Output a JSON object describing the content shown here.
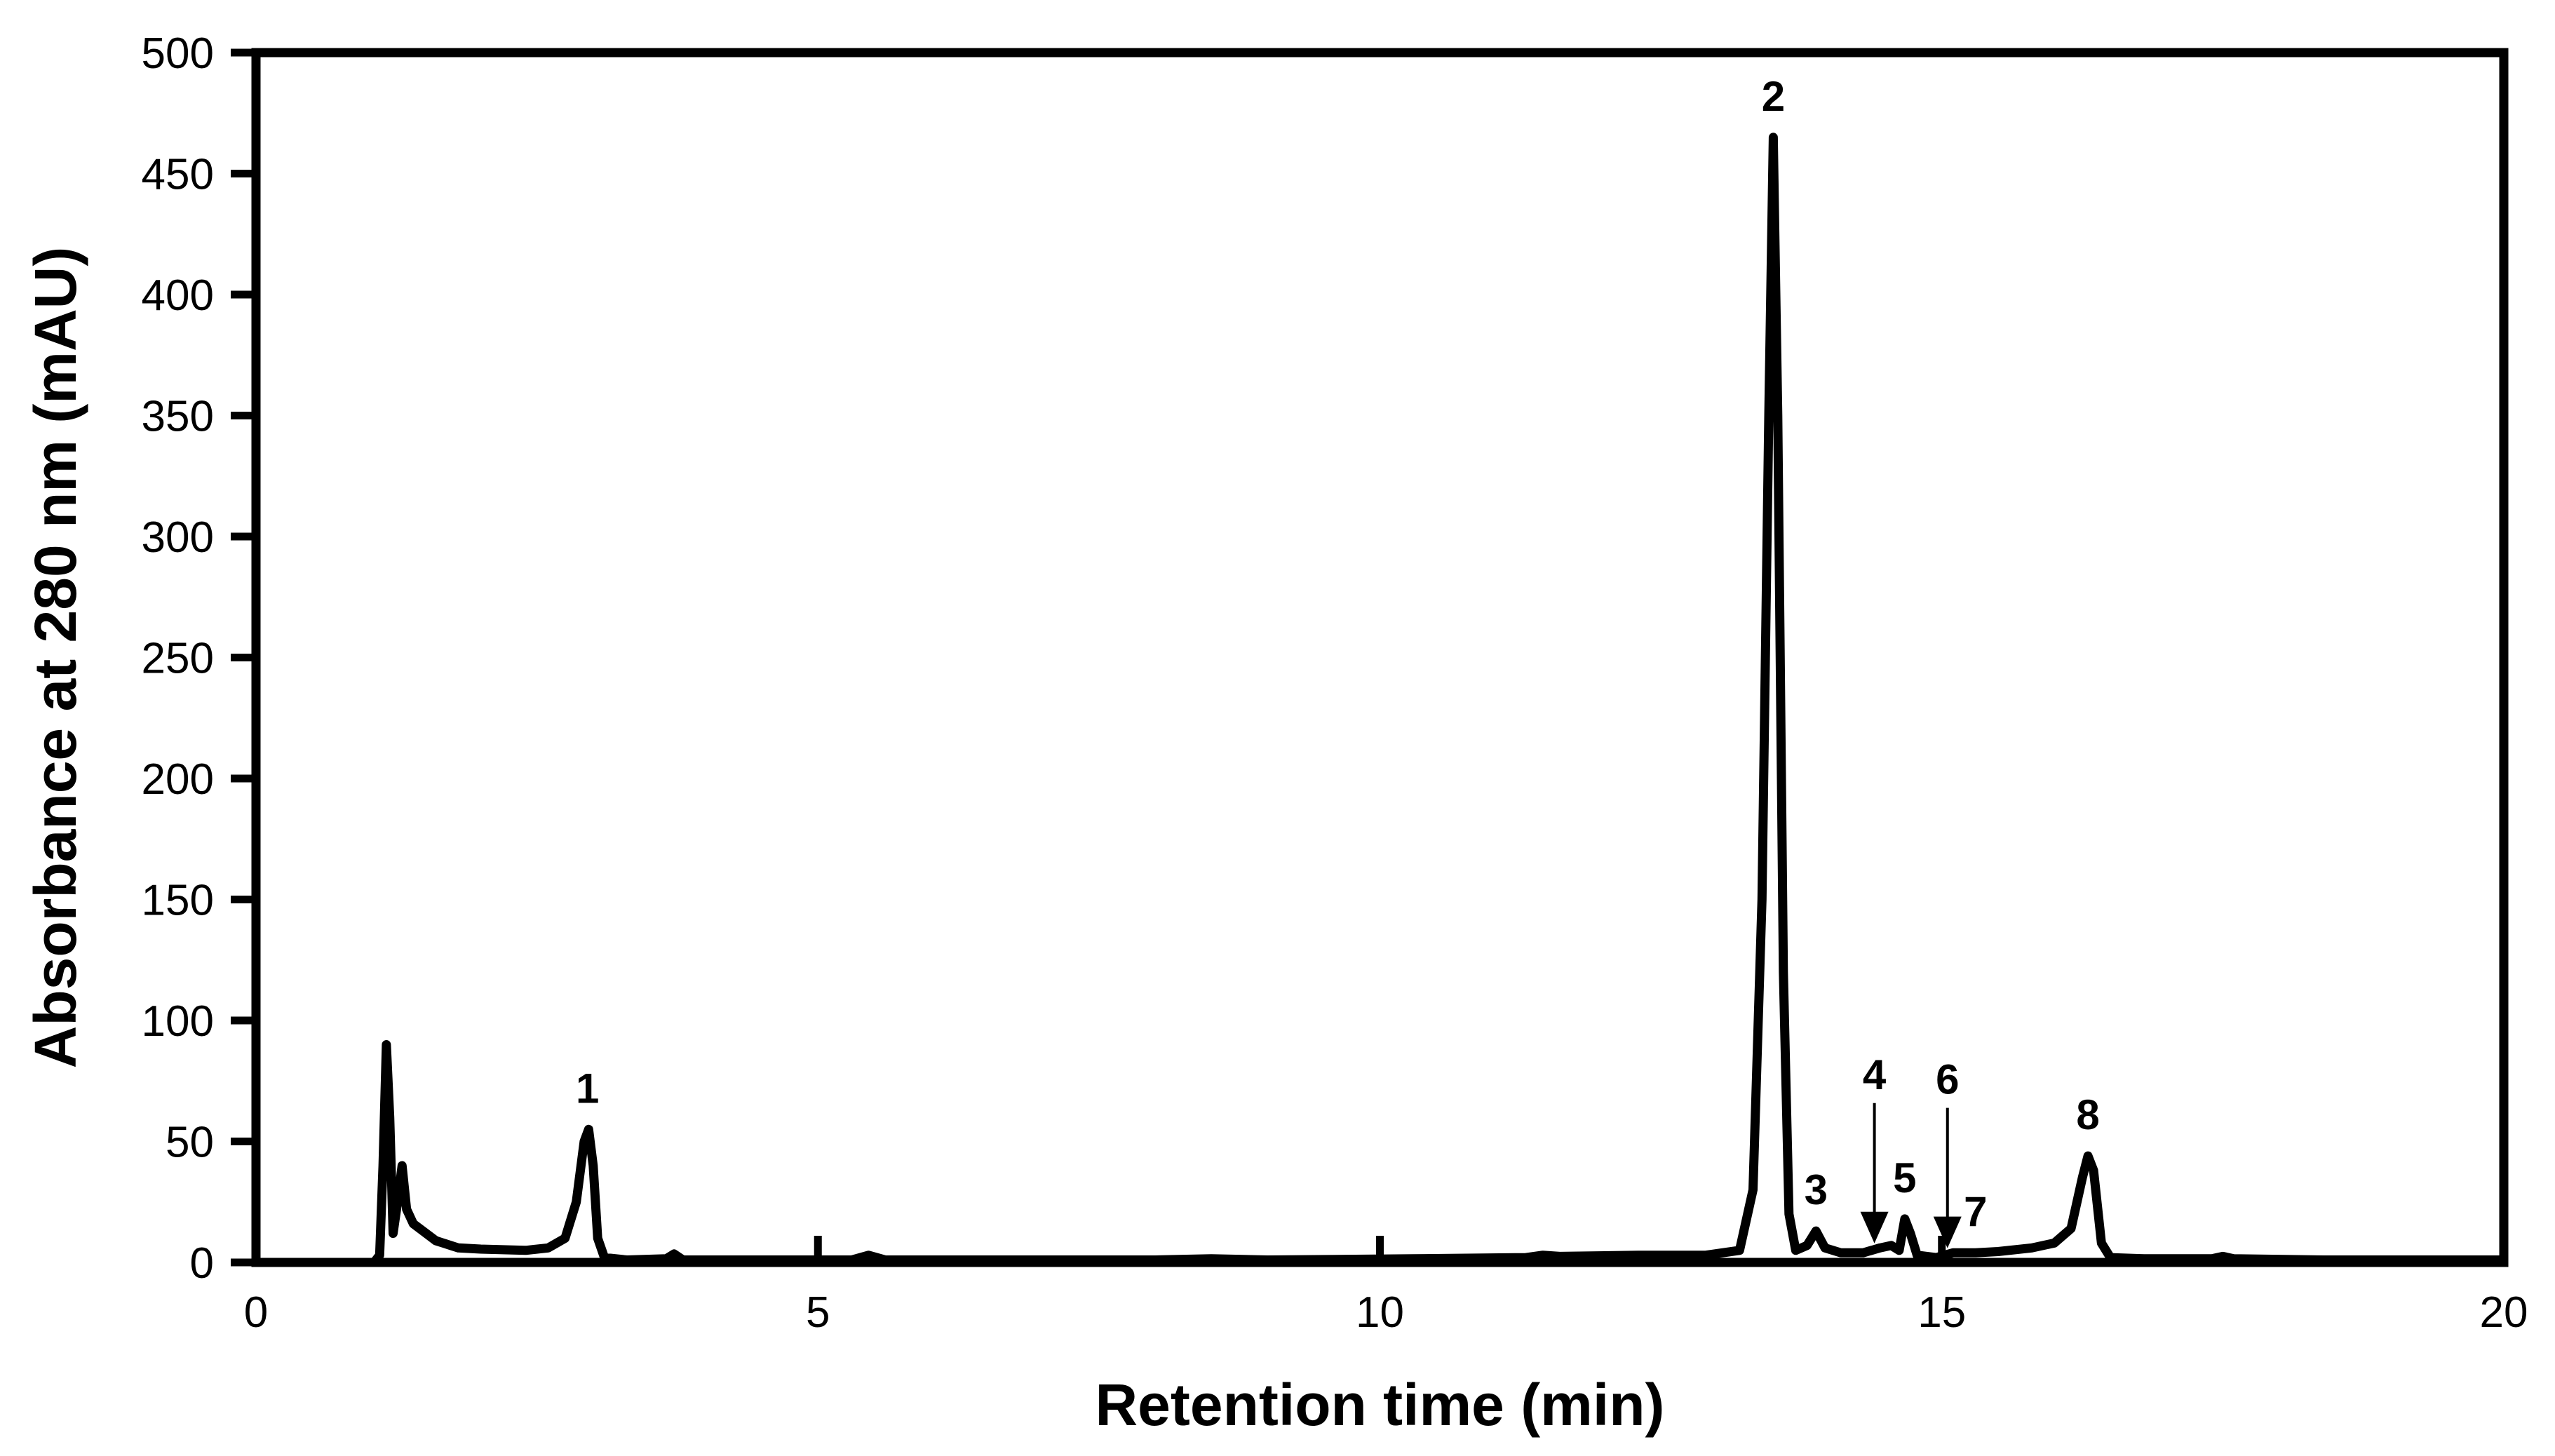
{
  "chart_data": {
    "type": "line",
    "title": "",
    "xlabel": "Retention time (min)",
    "ylabel": "Absorbance at 280 nm (mAU)",
    "xlim": [
      0,
      20
    ],
    "ylim": [
      0,
      500
    ],
    "x_ticks": [
      0,
      5,
      10,
      15,
      20
    ],
    "y_ticks": [
      0,
      50,
      100,
      150,
      200,
      250,
      300,
      350,
      400,
      450,
      500
    ],
    "grid": false,
    "legend": "none",
    "line_color": "#000000",
    "series": [
      {
        "values": [
          [
            0.0,
            0
          ],
          [
            1.05,
            0
          ],
          [
            1.1,
            3
          ],
          [
            1.13,
            40
          ],
          [
            1.16,
            90
          ],
          [
            1.19,
            60
          ],
          [
            1.22,
            12
          ],
          [
            1.26,
            25
          ],
          [
            1.3,
            40
          ],
          [
            1.34,
            22
          ],
          [
            1.4,
            16
          ],
          [
            1.6,
            9
          ],
          [
            1.8,
            6
          ],
          [
            2.0,
            5.5
          ],
          [
            2.4,
            5
          ],
          [
            2.6,
            6
          ],
          [
            2.75,
            10
          ],
          [
            2.85,
            25
          ],
          [
            2.92,
            50
          ],
          [
            2.96,
            55
          ],
          [
            3.0,
            40
          ],
          [
            3.04,
            10
          ],
          [
            3.1,
            2
          ],
          [
            3.3,
            1
          ],
          [
            3.65,
            1.5
          ],
          [
            3.72,
            3.5
          ],
          [
            3.8,
            1
          ],
          [
            5.3,
            1
          ],
          [
            5.45,
            3
          ],
          [
            5.6,
            1
          ],
          [
            8.0,
            1
          ],
          [
            8.5,
            1.5
          ],
          [
            9.0,
            1
          ],
          [
            10.3,
            1.5
          ],
          [
            11.3,
            2
          ],
          [
            11.45,
            3
          ],
          [
            11.6,
            2.5
          ],
          [
            12.3,
            3
          ],
          [
            12.9,
            3
          ],
          [
            13.2,
            5
          ],
          [
            13.32,
            30
          ],
          [
            13.4,
            150
          ],
          [
            13.46,
            350
          ],
          [
            13.5,
            465
          ],
          [
            13.54,
            350
          ],
          [
            13.59,
            120
          ],
          [
            13.64,
            20
          ],
          [
            13.7,
            5
          ],
          [
            13.8,
            7
          ],
          [
            13.88,
            13
          ],
          [
            13.96,
            6
          ],
          [
            14.1,
            4
          ],
          [
            14.3,
            4
          ],
          [
            14.45,
            6
          ],
          [
            14.55,
            7
          ],
          [
            14.62,
            5
          ],
          [
            14.67,
            18
          ],
          [
            14.72,
            12
          ],
          [
            14.78,
            3
          ],
          [
            14.95,
            2
          ],
          [
            15.1,
            4
          ],
          [
            15.3,
            4
          ],
          [
            15.5,
            4.5
          ],
          [
            15.8,
            6
          ],
          [
            16.0,
            8
          ],
          [
            16.15,
            14
          ],
          [
            16.25,
            35
          ],
          [
            16.3,
            44
          ],
          [
            16.35,
            38
          ],
          [
            16.42,
            8
          ],
          [
            16.5,
            2
          ],
          [
            16.8,
            1.5
          ],
          [
            17.4,
            1.5
          ],
          [
            17.5,
            2.5
          ],
          [
            17.6,
            1.5
          ],
          [
            18.4,
            1
          ],
          [
            19.3,
            1
          ],
          [
            20.0,
            1
          ]
        ]
      }
    ],
    "annotations": [
      {
        "text": "1",
        "x": 2.95,
        "y": 55
      },
      {
        "text": "2",
        "x": 13.5,
        "y": 465
      },
      {
        "text": "3",
        "x": 13.88,
        "y": 13
      },
      {
        "text": "4",
        "x": 14.4,
        "y": 5,
        "arrow": true
      },
      {
        "text": "5",
        "x": 14.67,
        "y": 18
      },
      {
        "text": "6",
        "x": 15.05,
        "y": 3,
        "arrow": true
      },
      {
        "text": "7",
        "x": 15.3,
        "y": 4
      },
      {
        "text": "8",
        "x": 16.3,
        "y": 44
      }
    ]
  }
}
